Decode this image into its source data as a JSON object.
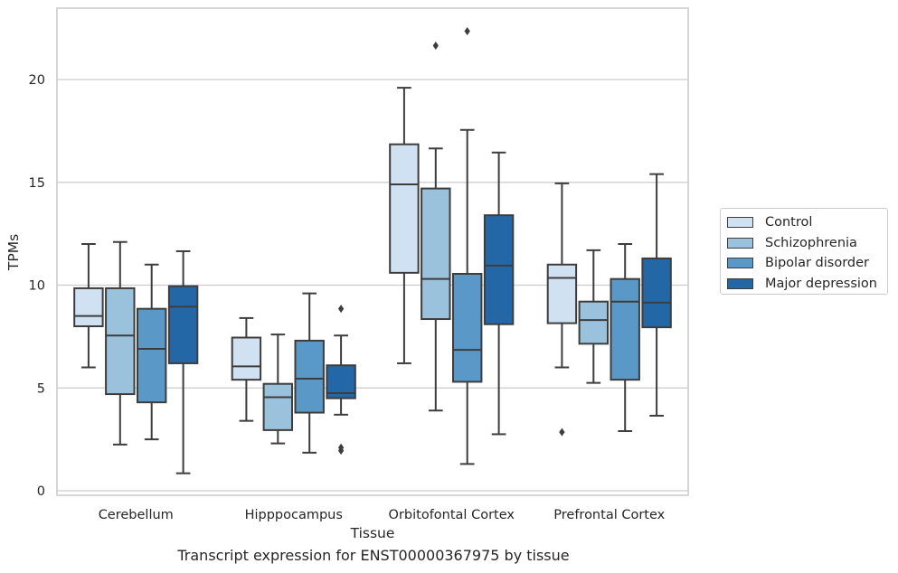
{
  "chart_data": {
    "type": "box",
    "xlabel": "Tissue",
    "ylabel": "TPMs",
    "caption": "Transcript expression for ENST00000367975 by tissue",
    "ylim": [
      -0.2,
      23.5
    ],
    "yticks": [
      0,
      5,
      10,
      15,
      20
    ],
    "grid": "horizontal",
    "legend_position": "right",
    "categories": [
      "Cerebellum",
      "Hipppocampus",
      "Orbitofontal Cortex",
      "Prefrontal Cortex"
    ],
    "series": [
      {
        "name": "Control",
        "color": "#d0e1f2",
        "boxes": [
          {
            "whislo": 6.0,
            "q1": 8.0,
            "med": 8.5,
            "q3": 9.85,
            "whishi": 12.0,
            "fliers": []
          },
          {
            "whislo": 3.4,
            "q1": 5.4,
            "med": 6.05,
            "q3": 7.45,
            "whishi": 8.4,
            "fliers": []
          },
          {
            "whislo": 6.2,
            "q1": 10.6,
            "med": 14.9,
            "q3": 16.85,
            "whishi": 19.6,
            "fliers": []
          },
          {
            "whislo": 6.0,
            "q1": 8.15,
            "med": 10.35,
            "q3": 11.0,
            "whishi": 14.95,
            "fliers": [
              2.85
            ]
          }
        ]
      },
      {
        "name": "Schizophrenia",
        "color": "#9ac2dd",
        "boxes": [
          {
            "whislo": 2.25,
            "q1": 4.7,
            "med": 7.55,
            "q3": 9.85,
            "whishi": 12.1,
            "fliers": []
          },
          {
            "whislo": 2.3,
            "q1": 2.95,
            "med": 4.55,
            "q3": 5.2,
            "whishi": 7.6,
            "fliers": []
          },
          {
            "whislo": 3.9,
            "q1": 8.35,
            "med": 10.3,
            "q3": 14.7,
            "whishi": 16.65,
            "fliers": [
              21.65
            ]
          },
          {
            "whislo": 5.25,
            "q1": 7.15,
            "med": 8.3,
            "q3": 9.2,
            "whishi": 11.7,
            "fliers": []
          }
        ]
      },
      {
        "name": "Bipolar disorder",
        "color": "#5a98c7",
        "boxes": [
          {
            "whislo": 2.5,
            "q1": 4.3,
            "med": 6.9,
            "q3": 8.85,
            "whishi": 11.0,
            "fliers": []
          },
          {
            "whislo": 1.85,
            "q1": 3.8,
            "med": 5.45,
            "q3": 7.3,
            "whishi": 9.6,
            "fliers": []
          },
          {
            "whislo": 1.3,
            "q1": 5.3,
            "med": 6.85,
            "q3": 10.55,
            "whishi": 17.55,
            "fliers": [
              22.35
            ]
          },
          {
            "whislo": 2.9,
            "q1": 5.4,
            "med": 9.2,
            "q3": 10.3,
            "whishi": 12.0,
            "fliers": []
          }
        ]
      },
      {
        "name": "Major depression",
        "color": "#2467a6",
        "boxes": [
          {
            "whislo": 0.85,
            "q1": 6.2,
            "med": 8.95,
            "q3": 9.95,
            "whishi": 11.65,
            "fliers": []
          },
          {
            "whislo": 3.7,
            "q1": 4.5,
            "med": 4.75,
            "q3": 6.1,
            "whishi": 7.55,
            "fliers": [
              8.85,
              1.95,
              2.1
            ]
          },
          {
            "whislo": 2.75,
            "q1": 8.1,
            "med": 10.95,
            "q3": 13.4,
            "whishi": 16.45,
            "fliers": []
          },
          {
            "whislo": 3.65,
            "q1": 7.95,
            "med": 9.15,
            "q3": 11.3,
            "whishi": 15.4,
            "fliers": []
          }
        ]
      }
    ]
  }
}
